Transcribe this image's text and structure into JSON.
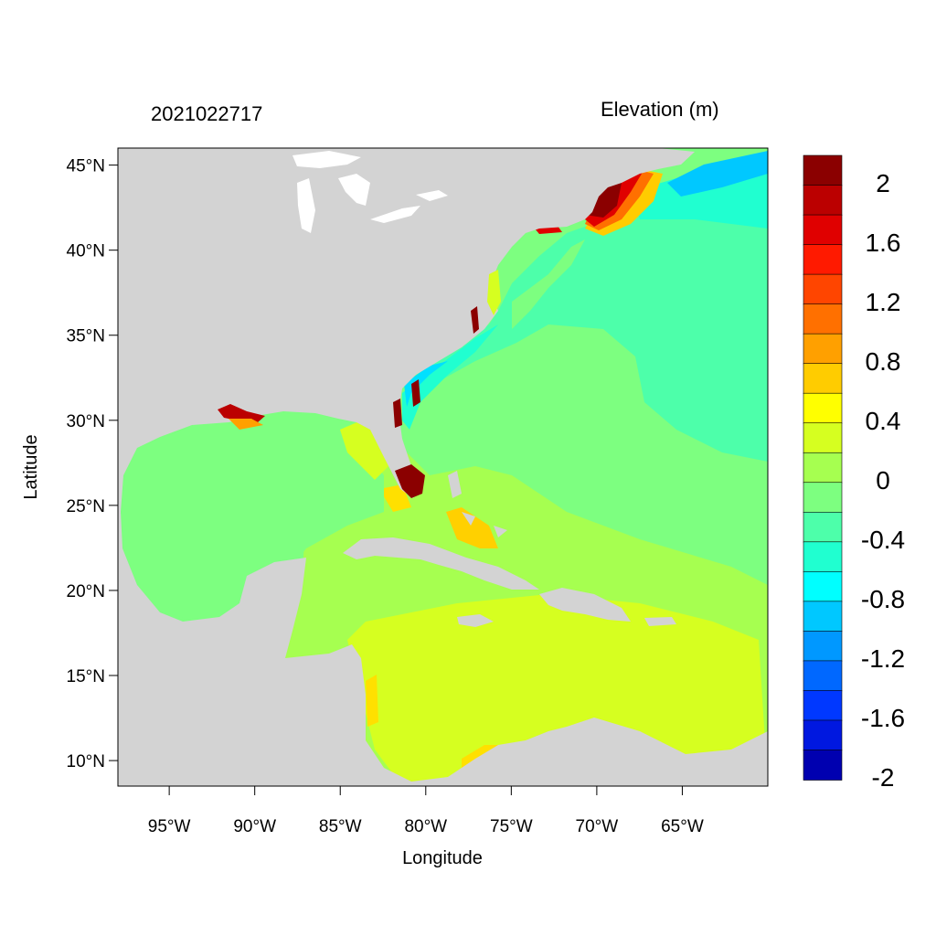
{
  "left_title": "2021022717",
  "right_title": "Elevation (m)",
  "x_axis_title": "Longitude",
  "y_axis_title": "Latitude",
  "lon_range": [
    -98,
    -60
  ],
  "lat_range": [
    8.5,
    46
  ],
  "x_ticks": [
    {
      "value": -95,
      "label": "95°W"
    },
    {
      "value": -90,
      "label": "90°W"
    },
    {
      "value": -85,
      "label": "85°W"
    },
    {
      "value": -80,
      "label": "80°W"
    },
    {
      "value": -75,
      "label": "75°W"
    },
    {
      "value": -70,
      "label": "70°W"
    },
    {
      "value": -65,
      "label": "65°W"
    }
  ],
  "y_ticks": [
    {
      "value": 45,
      "label": "45°N"
    },
    {
      "value": 40,
      "label": "40°N"
    },
    {
      "value": 35,
      "label": "35°N"
    },
    {
      "value": 30,
      "label": "30°N"
    },
    {
      "value": 25,
      "label": "25°N"
    },
    {
      "value": 20,
      "label": "20°N"
    },
    {
      "value": 15,
      "label": "15°N"
    },
    {
      "value": 10,
      "label": "10°N"
    }
  ],
  "colorbar": {
    "colors_top_to_bottom": [
      "#8b0000",
      "#bb0000",
      "#e00000",
      "#ff1a00",
      "#ff4500",
      "#ff7000",
      "#ffa000",
      "#ffcc00",
      "#ffff00",
      "#d6ff20",
      "#a6ff50",
      "#7dff80",
      "#4dffaa",
      "#20ffd0",
      "#00ffff",
      "#00c8ff",
      "#0098ff",
      "#0068ff",
      "#0038ff",
      "#0018e0",
      "#0000b0"
    ],
    "labels": [
      "2",
      "1.6",
      "1.2",
      "0.8",
      "0.4",
      "0",
      "-0.4",
      "-0.8",
      "-1.2",
      "-1.6",
      "-2"
    ]
  },
  "colors": {
    "land": "#d3d3d3",
    "ocean_zero": "#7dff80",
    "ocean_neg": "#4dffaa",
    "caribbean": "#a6ff50",
    "south_carib": "#d6ff20"
  }
}
